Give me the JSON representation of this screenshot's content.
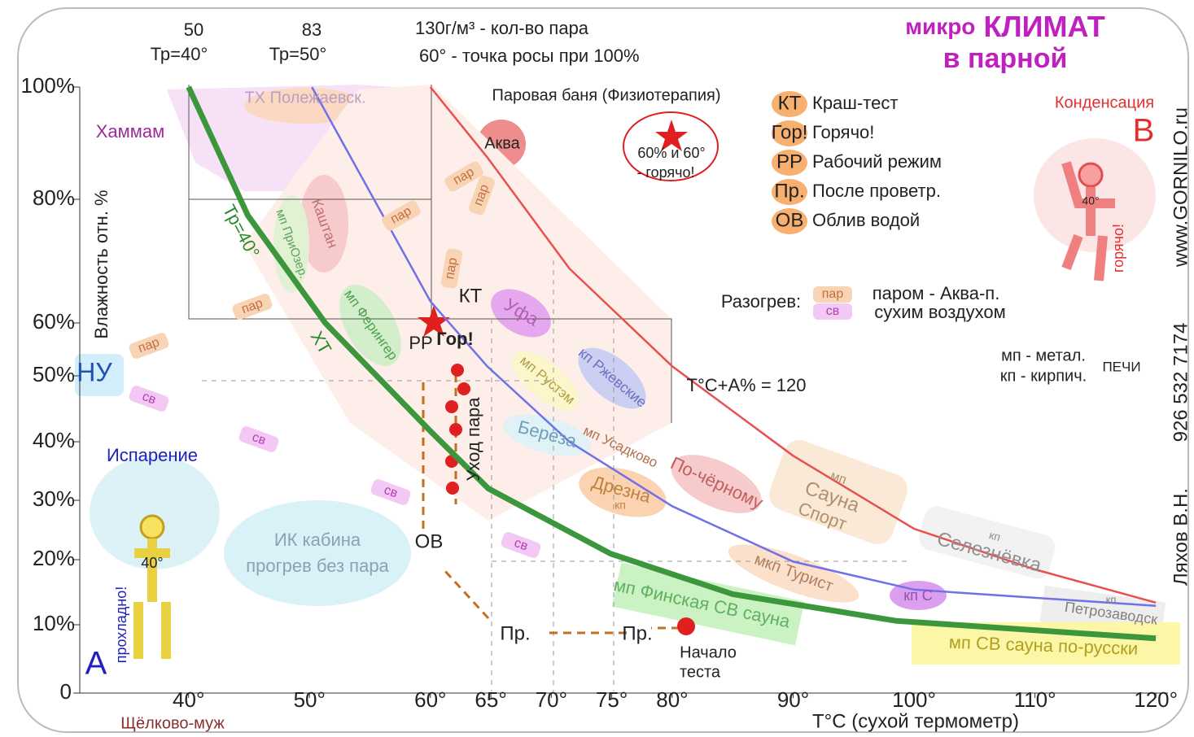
{
  "title": {
    "small": "микро",
    "big": "КЛИМАТ",
    "line2": "в парной"
  },
  "chart_data": {
    "type": "line",
    "x_label": "T°C (сухой термометр)",
    "y_label": "Влажность отн. %",
    "xlim": [
      31,
      121
    ],
    "ylim": [
      0,
      100
    ],
    "xticks": [
      {
        "value": 40,
        "label": "40°"
      },
      {
        "value": 50,
        "label": "50°"
      },
      {
        "value": 60,
        "label": "60°"
      },
      {
        "value": 65,
        "label": "65°"
      },
      {
        "value": 70,
        "label": "70°"
      },
      {
        "value": 75,
        "label": "75°"
      },
      {
        "value": 80,
        "label": "80°"
      },
      {
        "value": 90,
        "label": "90°"
      },
      {
        "value": 100,
        "label": "100°"
      },
      {
        "value": 110,
        "label": "110°"
      },
      {
        "value": 120,
        "label": "120°"
      }
    ],
    "yticks": [
      0,
      {
        "value": 10,
        "label": "10%"
      },
      {
        "value": 20,
        "label": "20%"
      },
      {
        "value": 30,
        "label": "30%"
      },
      {
        "value": 40,
        "label": "40%"
      },
      {
        "value": 50,
        "label": "50%"
      },
      {
        "value": 60,
        "label": "60%"
      },
      {
        "value": 80,
        "label": "80%"
      },
      {
        "value": 100,
        "label": "100%"
      }
    ],
    "series": [
      {
        "name": "Тр=40°",
        "color": "#3c963c",
        "x": [
          40,
          44.9,
          51.3,
          60,
          64.8,
          74.9,
          85,
          98.5,
          120
        ],
        "values": [
          100,
          77.4,
          60,
          41.6,
          32,
          21,
          14.7,
          10.6,
          8
        ]
      },
      {
        "name": "Тр=50°",
        "color": "#7070e8",
        "x": [
          50.2,
          60,
          64.7,
          71.5,
          80,
          90,
          100,
          120
        ],
        "values": [
          100,
          63.5,
          51.8,
          40,
          29,
          19.7,
          15.4,
          12.9
        ]
      },
      {
        "color": "#e85050",
        "x": [
          60,
          64.7,
          71.5,
          80,
          90,
          100,
          110,
          120
        ],
        "values": [
          100,
          87.5,
          68.8,
          51.8,
          37.6,
          25.2,
          18.5,
          13.4
        ]
      }
    ]
  },
  "top_labels": [
    "50",
    "83",
    "130г/м³ - кол-во пара",
    "60° - точка росы при 100%"
  ],
  "legend_box": [
    {
      "abbr": "КТ",
      "text": "Краш-тест"
    },
    {
      "abbr": "Гор!",
      "text": "Горячо!"
    },
    {
      "abbr": "РР",
      "text": "Рабочий режим"
    },
    {
      "abbr": "Пр.",
      "text": "После проветр."
    },
    {
      "abbr": "ОВ",
      "text": "Облив водой"
    }
  ],
  "notes": [
    "Хаммам",
    "ТХ Полежаевск.",
    "Паровая баня (Физиотерапия)",
    "Аква",
    "60% и 60°",
    "- горячо!",
    "Конденсация",
    "В",
    "ХТ",
    "Каштан",
    "мп ПриОзер.",
    "КТ",
    "РР",
    "Гор!",
    "Уфа",
    "мп Ферингер",
    "Уход пара",
    "мп Рустэм",
    "кп Ржевские",
    "T°C+A% = 120",
    "Берёза",
    "мп Усадково",
    "Дрезна",
    "кп",
    "По-чёрному",
    "мп",
    "Сауна",
    "Спорт",
    "кп",
    "Селезнёвка",
    "мкп Турист",
    "кп С",
    "мп Финская СВ сауна",
    "кп",
    "Петрозаводск",
    "мп СВ сауна по-русски",
    "ИК кабина",
    "прогрев без пара",
    "ОВ",
    "Пр.",
    "Пр.",
    "Начало",
    "теста",
    "Испарение",
    "40°",
    "прохладно!",
    "А",
    "НУ",
    "Щёлково-муж",
    "40°",
    "горячо!",
    "Разогрев:",
    "паром - Аква-п.",
    "сухим воздухом",
    "мп - метал.",
    "кп - кирпич.",
    "ПЕЧИ",
    "www.GORNILO.ru",
    "926 532 7174",
    "Ляхов В.Н.",
    "пар",
    "св",
    "св",
    "пар",
    "пар",
    "пар",
    "пар",
    "пар",
    "св",
    "св",
    "пар",
    "св"
  ]
}
